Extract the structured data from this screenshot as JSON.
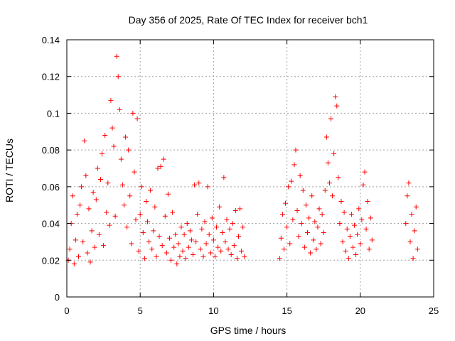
{
  "chart_data": {
    "type": "scatter",
    "title": "Day 356 of 2025, Rate Of TEC Index for receiver bch1",
    "xlabel": "GPS time / hours",
    "ylabel": "ROTI / TECUs",
    "xlim": [
      0,
      25
    ],
    "ylim": [
      0,
      0.14
    ],
    "xticks": [
      0,
      5,
      10,
      15,
      20,
      25
    ],
    "xtick_labels": [
      "0",
      "5",
      "10",
      "15",
      "20",
      "25"
    ],
    "yticks": [
      0,
      0.02,
      0.04,
      0.06,
      0.08,
      0.1,
      0.12,
      0.14
    ],
    "ytick_labels": [
      "0",
      "0.02",
      "0.04",
      "0.06",
      "0.08",
      "0.1",
      "0.12",
      "0.14"
    ],
    "grid": true,
    "marker": "+",
    "color": "#ff0000",
    "series": [
      {
        "points": [
          [
            0.1,
            0.02
          ],
          [
            0.2,
            0.026
          ],
          [
            0.3,
            0.04
          ],
          [
            0.4,
            0.055
          ],
          [
            0.5,
            0.018
          ],
          [
            0.6,
            0.031
          ],
          [
            0.7,
            0.045
          ],
          [
            0.8,
            0.022
          ],
          [
            0.9,
            0.05
          ],
          [
            1.0,
            0.06
          ],
          [
            1.1,
            0.03
          ],
          [
            1.2,
            0.085
          ],
          [
            1.3,
            0.066
          ],
          [
            1.4,
            0.024
          ],
          [
            1.5,
            0.048
          ],
          [
            1.6,
            0.019
          ],
          [
            1.7,
            0.036
          ],
          [
            1.8,
            0.057
          ],
          [
            1.9,
            0.027
          ],
          [
            2.0,
            0.053
          ],
          [
            2.1,
            0.07
          ],
          [
            2.2,
            0.034
          ],
          [
            2.3,
            0.064
          ],
          [
            2.4,
            0.078
          ],
          [
            2.5,
            0.028
          ],
          [
            2.6,
            0.088
          ],
          [
            2.7,
            0.046
          ],
          [
            2.8,
            0.062
          ],
          [
            2.9,
            0.039
          ],
          [
            3.0,
            0.107
          ],
          [
            3.1,
            0.092
          ],
          [
            3.2,
            0.082
          ],
          [
            3.3,
            0.044
          ],
          [
            3.4,
            0.131
          ],
          [
            3.5,
            0.12
          ],
          [
            3.6,
            0.102
          ],
          [
            3.7,
            0.075
          ],
          [
            3.8,
            0.061
          ],
          [
            3.9,
            0.05
          ],
          [
            4.0,
            0.087
          ],
          [
            4.1,
            0.038
          ],
          [
            4.2,
            0.08
          ],
          [
            4.3,
            0.055
          ],
          [
            4.4,
            0.029
          ],
          [
            4.5,
            0.1
          ],
          [
            4.6,
            0.068
          ],
          [
            4.7,
            0.042
          ],
          [
            4.8,
            0.097
          ],
          [
            4.9,
            0.025
          ],
          [
            5.0,
            0.045
          ],
          [
            5.1,
            0.06
          ],
          [
            5.2,
            0.035
          ],
          [
            5.3,
            0.021
          ],
          [
            5.4,
            0.052
          ],
          [
            5.5,
            0.041
          ],
          [
            5.6,
            0.03
          ],
          [
            5.7,
            0.058
          ],
          [
            5.8,
            0.026
          ],
          [
            5.9,
            0.036
          ],
          [
            6.0,
            0.049
          ],
          [
            6.1,
            0.022
          ],
          [
            6.2,
            0.07
          ],
          [
            6.3,
            0.033
          ],
          [
            6.4,
            0.071
          ],
          [
            6.5,
            0.028
          ],
          [
            6.6,
            0.075
          ],
          [
            6.7,
            0.044
          ],
          [
            6.8,
            0.024
          ],
          [
            6.9,
            0.056
          ],
          [
            7.0,
            0.032
          ],
          [
            7.1,
            0.02
          ],
          [
            7.2,
            0.046
          ],
          [
            7.3,
            0.027
          ],
          [
            7.4,
            0.034
          ],
          [
            7.5,
            0.018
          ],
          [
            7.6,
            0.029
          ],
          [
            7.7,
            0.022
          ],
          [
            7.8,
            0.038
          ],
          [
            7.9,
            0.025
          ],
          [
            8.0,
            0.034
          ],
          [
            8.1,
            0.021
          ],
          [
            8.2,
            0.04
          ],
          [
            8.3,
            0.027
          ],
          [
            8.4,
            0.036
          ],
          [
            8.5,
            0.031
          ],
          [
            8.6,
            0.023
          ],
          [
            8.7,
            0.061
          ],
          [
            8.8,
            0.03
          ],
          [
            8.9,
            0.045
          ],
          [
            9.0,
            0.062
          ],
          [
            9.1,
            0.026
          ],
          [
            9.2,
            0.037
          ],
          [
            9.3,
            0.022
          ],
          [
            9.4,
            0.041
          ],
          [
            9.5,
            0.029
          ],
          [
            9.6,
            0.06
          ],
          [
            9.7,
            0.034
          ],
          [
            9.8,
            0.024
          ],
          [
            9.9,
            0.043
          ],
          [
            10.0,
            0.031
          ],
          [
            10.1,
            0.022
          ],
          [
            10.2,
            0.038
          ],
          [
            10.3,
            0.027
          ],
          [
            10.4,
            0.049
          ],
          [
            10.5,
            0.025
          ],
          [
            10.6,
            0.035
          ],
          [
            10.7,
            0.065
          ],
          [
            10.8,
            0.03
          ],
          [
            10.9,
            0.042
          ],
          [
            11.0,
            0.026
          ],
          [
            11.1,
            0.037
          ],
          [
            11.2,
            0.023
          ],
          [
            11.3,
            0.04
          ],
          [
            11.4,
            0.028
          ],
          [
            11.5,
            0.047
          ],
          [
            11.6,
            0.021
          ],
          [
            11.7,
            0.033
          ],
          [
            11.8,
            0.048
          ],
          [
            11.9,
            0.025
          ],
          [
            12.0,
            0.038
          ],
          [
            12.1,
            0.022
          ],
          [
            14.5,
            0.021
          ],
          [
            14.6,
            0.032
          ],
          [
            14.7,
            0.045
          ],
          [
            14.8,
            0.026
          ],
          [
            14.9,
            0.051
          ],
          [
            15.0,
            0.038
          ],
          [
            15.1,
            0.06
          ],
          [
            15.2,
            0.029
          ],
          [
            15.3,
            0.063
          ],
          [
            15.4,
            0.042
          ],
          [
            15.5,
            0.072
          ],
          [
            15.6,
            0.08
          ],
          [
            15.7,
            0.047
          ],
          [
            15.8,
            0.033
          ],
          [
            15.9,
            0.066
          ],
          [
            16.0,
            0.04
          ],
          [
            16.1,
            0.058
          ],
          [
            16.2,
            0.027
          ],
          [
            16.3,
            0.05
          ],
          [
            16.4,
            0.035
          ],
          [
            16.5,
            0.043
          ],
          [
            16.6,
            0.024
          ],
          [
            16.7,
            0.055
          ],
          [
            16.8,
            0.031
          ],
          [
            16.9,
            0.041
          ],
          [
            17.0,
            0.026
          ],
          [
            17.1,
            0.038
          ],
          [
            17.2,
            0.048
          ],
          [
            17.3,
            0.029
          ],
          [
            17.4,
            0.045
          ],
          [
            17.5,
            0.035
          ],
          [
            17.6,
            0.058
          ],
          [
            17.7,
            0.087
          ],
          [
            17.8,
            0.073
          ],
          [
            17.9,
            0.062
          ],
          [
            18.0,
            0.097
          ],
          [
            18.1,
            0.055
          ],
          [
            18.2,
            0.078
          ],
          [
            18.3,
            0.109
          ],
          [
            18.4,
            0.104
          ],
          [
            18.5,
            0.065
          ],
          [
            18.6,
            0.04
          ],
          [
            18.7,
            0.052
          ],
          [
            18.8,
            0.03
          ],
          [
            18.9,
            0.046
          ],
          [
            19.0,
            0.025
          ],
          [
            19.1,
            0.037
          ],
          [
            19.2,
            0.021
          ],
          [
            19.3,
            0.033
          ],
          [
            19.4,
            0.045
          ],
          [
            19.5,
            0.027
          ],
          [
            19.6,
            0.039
          ],
          [
            19.7,
            0.023
          ],
          [
            19.8,
            0.034
          ],
          [
            19.9,
            0.048
          ],
          [
            20.0,
            0.029
          ],
          [
            20.1,
            0.042
          ],
          [
            20.2,
            0.061
          ],
          [
            20.3,
            0.068
          ],
          [
            20.4,
            0.037
          ],
          [
            20.5,
            0.052
          ],
          [
            20.6,
            0.026
          ],
          [
            20.7,
            0.043
          ],
          [
            20.8,
            0.031
          ],
          [
            23.1,
            0.04
          ],
          [
            23.2,
            0.055
          ],
          [
            23.3,
            0.062
          ],
          [
            23.4,
            0.03
          ],
          [
            23.5,
            0.045
          ],
          [
            23.6,
            0.021
          ],
          [
            23.7,
            0.036
          ],
          [
            23.8,
            0.049
          ],
          [
            23.9,
            0.026
          ]
        ]
      }
    ]
  }
}
